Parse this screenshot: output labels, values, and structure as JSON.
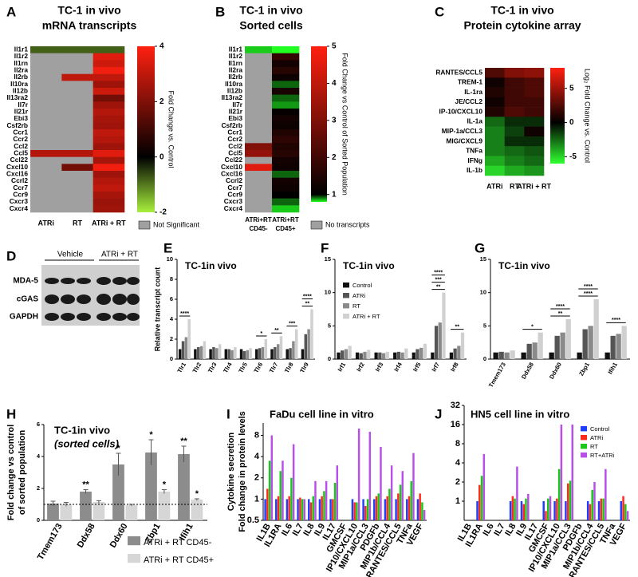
{
  "chart_data": [
    {
      "panel": "A",
      "type": "heatmap",
      "title": "TC-1 in vivo",
      "subtitle": "mRNA transcripts",
      "rows": [
        "Il1r1",
        "Il1r2",
        "Il1rn",
        "Il2ra",
        "Il2rb",
        "Il10ra",
        "Il12b",
        "Il13ra2",
        "Il7r",
        "Il21r",
        "Ebi3",
        "Csf2rb",
        "Ccr1",
        "Ccr2",
        "Ccl2",
        "Ccl5",
        "Ccl22",
        "Cxcl10",
        "Cxcl16",
        "Ccrl2",
        "Ccr7",
        "Ccr9",
        "Cxcr3",
        "Cxcr4"
      ],
      "columns": [
        "ATRi",
        "RT",
        "ATRi + RT"
      ],
      "values": [
        [
          -0.8,
          -0.8,
          -0.8
        ],
        [
          null,
          null,
          3.5
        ],
        [
          null,
          null,
          3.2
        ],
        [
          null,
          null,
          3.8
        ],
        [
          null,
          3,
          3
        ],
        [
          null,
          null,
          2.5
        ],
        [
          null,
          null,
          3.2
        ],
        [
          null,
          null,
          1.8
        ],
        [
          null,
          null,
          2.5
        ],
        [
          null,
          null,
          2.8
        ],
        [
          null,
          null,
          2.6
        ],
        [
          null,
          null,
          2.5
        ],
        [
          null,
          null,
          3
        ],
        [
          null,
          null,
          2.8
        ],
        [
          null,
          null,
          2.5
        ],
        [
          2.8,
          2.8,
          3.5
        ],
        [
          null,
          null,
          2.6
        ],
        [
          null,
          1.8,
          3.8
        ],
        [
          null,
          null,
          2.5
        ],
        [
          null,
          null,
          2.8
        ],
        [
          null,
          null,
          3
        ],
        [
          null,
          null,
          2.6
        ],
        [
          null,
          null,
          2.4
        ],
        [
          null,
          null,
          2.5
        ]
      ],
      "clim": [
        -2,
        4
      ],
      "cticks": [
        4,
        2,
        0,
        -2
      ],
      "color_stops": [
        -2,
        0,
        4
      ],
      "colors": [
        "#a8f03c",
        "#000000",
        "#ff2010"
      ],
      "colorbar_label": "Fold Change vs. Control",
      "null_color": "#a0a0a0",
      "null_label": "Not Significant"
    },
    {
      "panel": "B",
      "type": "heatmap",
      "title": "TC-1 in vivo",
      "subtitle": "Sorted cells",
      "rows": [
        "Il1r1",
        "Il1r2",
        "Il1rn",
        "Il2ra",
        "Il2rb",
        "Il10ra",
        "Il12b",
        "Il13ra2",
        "Il7r",
        "Il21r",
        "Ebi3",
        "Csf2rb",
        "Ccr1",
        "Ccr2",
        "Ccl2",
        "Ccl5",
        "Ccl22",
        "Cxcl10",
        "Cxcl16",
        "Ccrl2",
        "Ccr7",
        "Ccr9",
        "Cxcr3",
        "Cxcr4"
      ],
      "columns": [
        [
          "ATRi+RT",
          "CD45-"
        ],
        [
          "ATRi+RT",
          "CD45+"
        ]
      ],
      "values": [
        [
          0.6,
          0.5
        ],
        [
          null,
          1.8
        ],
        [
          null,
          1.3
        ],
        [
          null,
          1.6
        ],
        [
          null,
          1.2
        ],
        [
          null,
          0.8
        ],
        [
          null,
          1.4
        ],
        [
          null,
          0.8
        ],
        [
          null,
          0.7
        ],
        [
          null,
          1.1
        ],
        [
          null,
          1.3
        ],
        [
          null,
          1.2
        ],
        [
          null,
          1.5
        ],
        [
          null,
          1.7
        ],
        [
          3,
          1.5
        ],
        [
          3.3,
          1.6
        ],
        [
          null,
          1.3
        ],
        [
          4.5,
          1.2
        ],
        [
          null,
          0.8
        ],
        [
          null,
          1.3
        ],
        [
          null,
          1.2
        ],
        [
          null,
          1
        ],
        [
          null,
          0.8
        ],
        [
          null,
          0.6
        ]
      ],
      "clim": [
        0.8,
        5
      ],
      "cticks": [
        5,
        4,
        3,
        2,
        1
      ],
      "color_stops": [
        0.5,
        1,
        5
      ],
      "colors": [
        "#20ff20",
        "#000000",
        "#ff2010"
      ],
      "colorbar_label": "Fold Change vs Control of Sorted Population",
      "null_color": "#a0a0a0",
      "null_label": "No transcripts"
    },
    {
      "panel": "C",
      "type": "heatmap",
      "title": "TC-1 in vivo",
      "subtitle": "Protein cytokine array",
      "rows": [
        "RANTES/CCL5",
        "TREM-1",
        "IL-1ra",
        "JE/CCL2",
        "IP-10/CXCL10",
        "IL-1a",
        "MIP-1a/CCL3",
        "MIG/CXCL9",
        "TNFa",
        "IFNg",
        "IL-1b"
      ],
      "columns": [
        "ATRi",
        "RT",
        "ATRi + RT"
      ],
      "values": [
        [
          2.5,
          4,
          4.5
        ],
        [
          0.5,
          2,
          2.5
        ],
        [
          1,
          2,
          2.5
        ],
        [
          0.5,
          2,
          2
        ],
        [
          1,
          2.5,
          2
        ],
        [
          -2.5,
          -1,
          -1
        ],
        [
          -3,
          -1.5,
          0.5
        ],
        [
          -3,
          -1,
          -1
        ],
        [
          -3,
          -2.5,
          -2
        ],
        [
          -4,
          -3,
          -2.5
        ],
        [
          -5,
          -4,
          -3.5
        ]
      ],
      "clim": [
        -6,
        8
      ],
      "cticks": [
        5,
        0,
        -5
      ],
      "color_stops": [
        -6,
        0,
        8
      ],
      "colors": [
        "#30ff30",
        "#000000",
        "#ff2010"
      ],
      "colorbar_label": "Log₂ Fold Change vs. Control"
    },
    {
      "panel": "D",
      "type": "blot",
      "groups": [
        "Vehicle",
        "ATRi + RT"
      ],
      "rows": [
        "MDA-5",
        "cGAS",
        "GAPDH"
      ]
    },
    {
      "panel": "E",
      "type": "bar",
      "title": "TC-1in vivo",
      "ylabel": "Relative transcript count",
      "categories": [
        "Tlr1",
        "Tlr2",
        "Tlr3",
        "Tlr4",
        "Tlr5",
        "Tlr6",
        "Tlr7",
        "Tlr8",
        "Tlr9"
      ],
      "series": [
        {
          "color": "#111111",
          "values": [
            1,
            1,
            1,
            1,
            1,
            1,
            1,
            1,
            1
          ]
        },
        {
          "color": "#555555",
          "values": [
            1.8,
            1.2,
            1.2,
            1,
            0.8,
            1.1,
            1.2,
            1.1,
            2.5
          ]
        },
        {
          "color": "#8a8a8a",
          "values": [
            2.2,
            1.3,
            1.1,
            0.9,
            0.9,
            1.2,
            1.5,
            1.8,
            3
          ]
        },
        {
          "color": "#d0d0d0",
          "values": [
            4,
            1.8,
            1.5,
            1.2,
            1.1,
            2,
            2.3,
            3,
            5
          ]
        }
      ],
      "significance": [
        {
          "category": 0,
          "label": "****"
        },
        {
          "category": 5,
          "label": "*"
        },
        {
          "category": 6,
          "label": "**"
        },
        {
          "category": 7,
          "label": "***"
        },
        {
          "category": 8,
          "label": "**"
        },
        {
          "category": 8,
          "label": "****"
        }
      ],
      "ylim": [
        0,
        10
      ],
      "yticks": [
        0,
        2,
        4,
        6,
        8,
        10
      ]
    },
    {
      "panel": "F",
      "type": "bar",
      "title": "TC-1in vivo",
      "categories": [
        "Irf1",
        "Irf2",
        "Irf3",
        "Irf4",
        "Irf5",
        "Irf7",
        "Irf8"
      ],
      "series": [
        {
          "name": "Control",
          "color": "#111111",
          "values": [
            1,
            1,
            1,
            1,
            1,
            1,
            1
          ]
        },
        {
          "name": "ATRi",
          "color": "#555555",
          "values": [
            1.3,
            0.9,
            1,
            1.1,
            1.5,
            5,
            1.6
          ]
        },
        {
          "name": "RT",
          "color": "#8a8a8a",
          "values": [
            1.5,
            1.1,
            0.9,
            1,
            1.7,
            5.5,
            2
          ]
        },
        {
          "name": "ATRi + RT",
          "color": "#d0d0d0",
          "values": [
            2,
            1.4,
            1.1,
            1.6,
            2.3,
            10,
            4
          ]
        }
      ],
      "significance": [
        {
          "category": 5,
          "label": "**"
        },
        {
          "category": 5,
          "label": "***"
        },
        {
          "category": 5,
          "label": "****"
        },
        {
          "category": 6,
          "label": "**"
        }
      ],
      "ylim": [
        0,
        15
      ],
      "yticks": [
        0,
        5,
        10,
        15
      ],
      "legend": true
    },
    {
      "panel": "G",
      "type": "bar",
      "title": "TC-1in vivo",
      "categories": [
        "Tmem173",
        "Ddx58",
        "Ddx60",
        "Zbp1",
        "Ifih1"
      ],
      "series": [
        {
          "color": "#111111",
          "values": [
            1,
            1,
            1,
            1,
            1
          ]
        },
        {
          "color": "#555555",
          "values": [
            1.1,
            2.3,
            3.5,
            4.5,
            3.5
          ]
        },
        {
          "color": "#8a8a8a",
          "values": [
            1,
            2.5,
            4,
            5,
            3.8
          ]
        },
        {
          "color": "#d0d0d0",
          "values": [
            1.3,
            4,
            6,
            9,
            5
          ]
        }
      ],
      "significance": [
        {
          "category": 1,
          "label": "*"
        },
        {
          "category": 2,
          "label": "**"
        },
        {
          "category": 2,
          "label": "****"
        },
        {
          "category": 3,
          "label": "****"
        },
        {
          "category": 3,
          "label": "****"
        },
        {
          "category": 4,
          "label": "****"
        }
      ],
      "ylim": [
        0,
        15
      ],
      "yticks": [
        0,
        5,
        10,
        15
      ]
    },
    {
      "panel": "H",
      "type": "bar",
      "title": "TC-1in vivo",
      "subtitle": "(sorted cells)",
      "ylabel": [
        "Fold change vs control",
        "of sorted population"
      ],
      "categories": [
        "Tmem173",
        "Ddx58",
        "Ddx60",
        "Zbp1",
        "Ifih1"
      ],
      "series": [
        {
          "name": "ATRi + RT CD45-",
          "color": "#8c8c8c",
          "values": [
            1.05,
            1.8,
            3.5,
            4.25,
            4.15
          ],
          "errors": [
            0.15,
            0.12,
            0.7,
            0.8,
            0.5
          ],
          "significance": [
            null,
            "**",
            "*",
            "*",
            "**"
          ]
        },
        {
          "name": "ATRi + RT CD45+",
          "color": "#d6d6d6",
          "values": [
            1,
            1.15,
            0.95,
            1.8,
            1.3
          ],
          "errors": [
            0.12,
            0.08,
            0.05,
            0.12,
            0.05
          ],
          "significance": [
            null,
            null,
            null,
            "*",
            "*"
          ]
        }
      ],
      "reference_line": 1,
      "ylim": [
        0,
        6
      ],
      "yticks": [
        0,
        2,
        4,
        6
      ],
      "legend": true
    },
    {
      "panel": "I",
      "type": "bar",
      "title": "FaDu cell line in vitro",
      "ylabel": [
        "Cytokine secretion",
        "Fold change in protein levels"
      ],
      "categories": [
        "IL1B",
        "IL1RA",
        "IL6",
        "IL7",
        "IL8",
        "IL9",
        "IL17",
        "GMCSF",
        "IP10/CXCL10",
        "MIP1a/CCL3",
        "PDGFb",
        "MIP1b/CCL4",
        "RANTES/CCL5",
        "TNFa",
        "VEGF"
      ],
      "series": [
        {
          "color": "#1f3fff",
          "values": [
            1,
            1,
            1,
            1,
            1,
            1,
            1,
            null,
            1,
            1,
            1,
            1,
            1,
            1,
            1
          ]
        },
        {
          "color": "#ff2a1a",
          "values": [
            1.4,
            1.1,
            1.1,
            1.05,
            0.9,
            1.1,
            1,
            null,
            0.9,
            0.8,
            1.1,
            1.1,
            1.2,
            1.1,
            1.2
          ]
        },
        {
          "color": "#19c819",
          "values": [
            3.5,
            2.5,
            2,
            1,
            1.1,
            1.3,
            1.7,
            null,
            0.9,
            1,
            1.2,
            1.4,
            1.6,
            1.8,
            0.9
          ]
        },
        {
          "color": "#b84fe8",
          "values": [
            8,
            3.5,
            6,
            1,
            1.8,
            1.8,
            3,
            null,
            10,
            9,
            5.5,
            3,
            2.5,
            4.5,
            0.7
          ]
        }
      ],
      "yscale": "log",
      "ylim": [
        0.5,
        12
      ],
      "yticks": [
        0.5,
        1,
        2,
        4,
        8
      ]
    },
    {
      "panel": "J",
      "type": "bar",
      "title": "HN5 cell line in vitro",
      "categories": [
        "IL1B",
        "IL1RA",
        "IL6",
        "IL7",
        "IL8",
        "IL9",
        "IL17",
        "GMCSF",
        "IP10/CXCL10",
        "MIP1a/CCL3",
        "PDGFb",
        "MIP1b/CCL4",
        "RANTES/CCL5",
        "TNFa",
        "VEGF"
      ],
      "series": [
        {
          "name": "Control",
          "color": "#1f3fff",
          "values": [
            null,
            1,
            null,
            null,
            1,
            1,
            null,
            1,
            1,
            1,
            null,
            1,
            1,
            null,
            1
          ]
        },
        {
          "name": "ATRi",
          "color": "#ff2a1a",
          "values": [
            null,
            1.8,
            null,
            null,
            1.2,
            0.9,
            null,
            0.7,
            1.1,
            1.9,
            null,
            0.9,
            1.1,
            null,
            1.2
          ]
        },
        {
          "name": "RT",
          "color": "#19c819",
          "values": [
            null,
            2.5,
            null,
            null,
            1.1,
            1.1,
            null,
            1.1,
            3.2,
            2.1,
            null,
            1.5,
            1.1,
            null,
            0.9
          ]
        },
        {
          "name": "RT+ATRi",
          "color": "#b84fe8",
          "values": [
            null,
            5.5,
            null,
            null,
            3.5,
            1.3,
            null,
            1.2,
            16,
            16,
            null,
            2,
            3.2,
            null,
            0.7
          ]
        }
      ],
      "yscale": "log",
      "ylim": [
        0.5,
        32
      ],
      "yticks": [
        1,
        2,
        4,
        8,
        16,
        32
      ],
      "legend": true
    }
  ]
}
